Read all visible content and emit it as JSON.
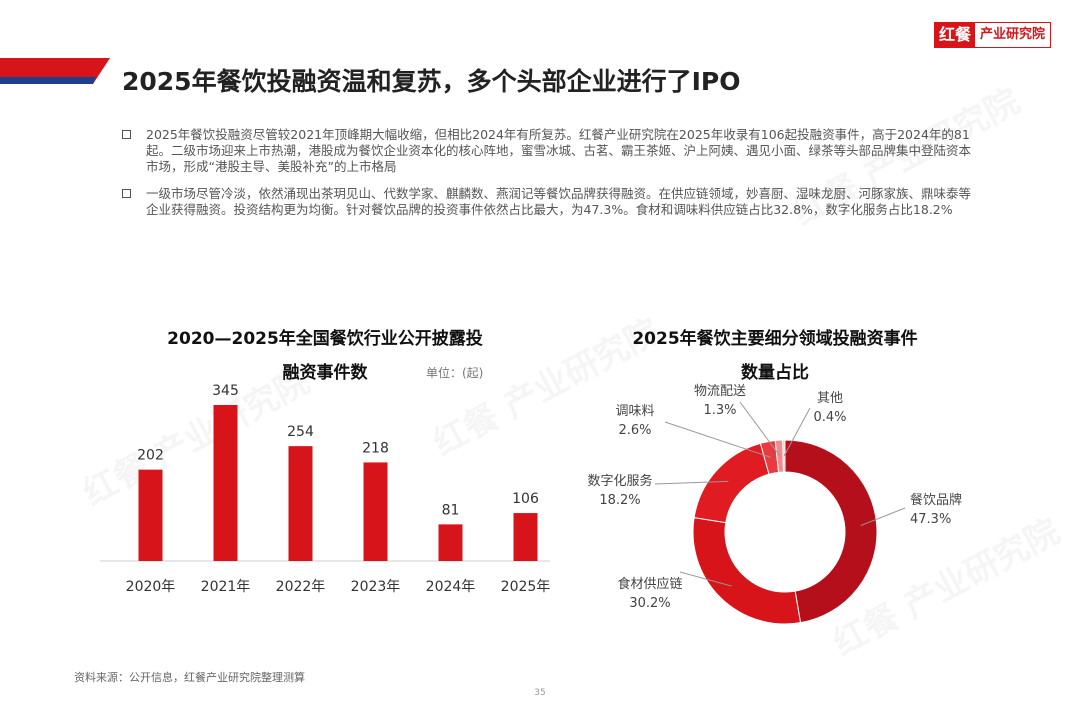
{
  "header": {
    "logo_main": "红餐",
    "logo_sub": "产业研究院",
    "title": "2025年餐饮投融资温和复苏，多个头部企业进行了IPO"
  },
  "paragraphs": [
    "2025年餐饮投融资尽管较2021年顶峰期大幅收缩，但相比2024年有所复苏。红餐产业研究院在2025年收录有106起投融资事件，高于2024年的81起。二级市场迎来上市热潮，港股成为餐饮企业资本化的核心阵地，蜜雪冰城、古茗、霸王茶姬、沪上阿姨、遇见小面、绿茶等头部品牌集中登陆资本市场，形成“港股主导、美股补充”的上市格局",
    "一级市场尽管冷淡，依然涌现出茶玥见山、代数学家、麒麟数、燕润记等餐饮品牌获得融资。在供应链领域，妙喜厨、湿味龙厨、河豚家族、鼎味泰等企业获得融资。投资结构更为均衡。针对餐饮品牌的投资事件依然占比最大，为47.3%。食材和调味料供应链占比32.8%，数字化服务占比18.2%"
  ],
  "charts": [
    {
      "type": "bar",
      "title_line1": "2020—2025年全国餐饮行业公开披露投",
      "title_line2": "融资事件数",
      "unit": "单位：(起)",
      "categories": [
        "2020年",
        "2021年",
        "2022年",
        "2023年",
        "2024年",
        "2025年"
      ],
      "values": [
        202,
        345,
        254,
        218,
        81,
        106
      ],
      "bar_color": "#d7141a",
      "ylim": [
        0,
        345
      ]
    },
    {
      "type": "pie",
      "style": "donut",
      "title_line1": "2025年餐饮主要细分领域投融资事件",
      "title_line2": "数量占比",
      "categories": [
        "餐饮品牌",
        "食材供应链",
        "数字化服务",
        "调味料",
        "物流配送",
        "其他"
      ],
      "values": [
        47.3,
        30.2,
        18.2,
        2.6,
        1.3,
        0.4
      ],
      "value_labels": [
        "47.3%",
        "30.2%",
        "18.2%",
        "2.6%",
        "1.3%",
        "0.4%"
      ],
      "colors": [
        "#b50f1c",
        "#d7141a",
        "#e01b22",
        "#e83a3f",
        "#f08a8d",
        "#f6c4c6"
      ]
    }
  ],
  "watermark_text": "红餐 产业研究院",
  "footer": {
    "source": "资料来源：公开信息，红餐产业研究院整理测算",
    "page_number": "35"
  }
}
